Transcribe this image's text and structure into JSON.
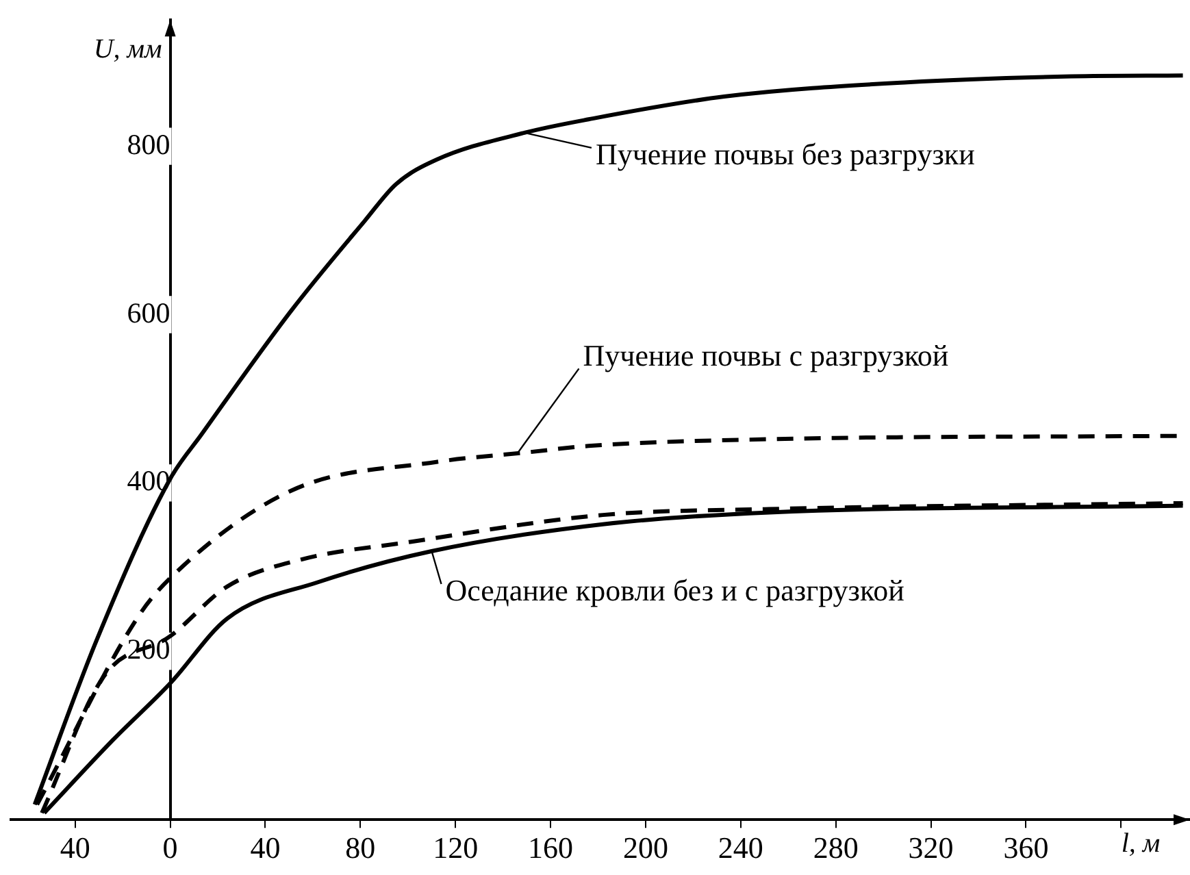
{
  "chart_data": {
    "type": "line",
    "xlabel": "l, м",
    "ylabel": "U, мм",
    "xlim": [
      -67,
      429
    ],
    "ylim": [
      0,
      950
    ],
    "xticks": [
      {
        "value": -40,
        "label": "40"
      },
      0,
      40,
      80,
      120,
      160,
      200,
      240,
      280,
      320,
      360,
      {
        "value": 400,
        "label": null
      }
    ],
    "yticks": [
      200,
      400,
      600,
      800
    ],
    "grid": false,
    "legend": false,
    "marker": "none",
    "series": [
      {
        "color": "#000000",
        "line_style": "solid",
        "x": [
          -57,
          -31,
          0,
          13,
          51,
          82,
          95,
          112,
          149,
          176,
          233,
          310,
          379,
          426
        ],
        "values": [
          18,
          213,
          405,
          457,
          605,
          712,
          755,
          784,
          816,
          832,
          859,
          876,
          883,
          884
        ]
      },
      {
        "color": "#000000",
        "line_style": "dashed",
        "x": [
          -56,
          -14,
          0,
          51,
          112,
          149,
          176,
          252,
          426
        ],
        "values": [
          18,
          239,
          287,
          391,
          425,
          436,
          444,
          452,
          456
        ]
      },
      {
        "color": "#000000",
        "line_style": "dashed",
        "x": [
          -54,
          -28,
          0,
          24,
          55,
          101,
          182,
          252,
          426
        ],
        "values": [
          8,
          170,
          218,
          277,
          309,
          330,
          362,
          369,
          376
        ]
      },
      {
        "color": "#000000",
        "line_style": "solid",
        "x": [
          -53,
          -24,
          0,
          24,
          62,
          110,
          182,
          252,
          426
        ],
        "values": [
          8,
          95,
          162,
          239,
          282,
          319,
          351,
          365,
          373
        ]
      }
    ],
    "annotations": [
      {
        "text": "Пучение почвы без разгрузки",
        "x": 149,
        "y": 816
      },
      {
        "text": "Пучение почвы с разгрузкой",
        "x": 146,
        "y": 435
      },
      {
        "text": "Оседание кровли без и с разгрузкой",
        "x": 110,
        "y": 319
      }
    ]
  }
}
